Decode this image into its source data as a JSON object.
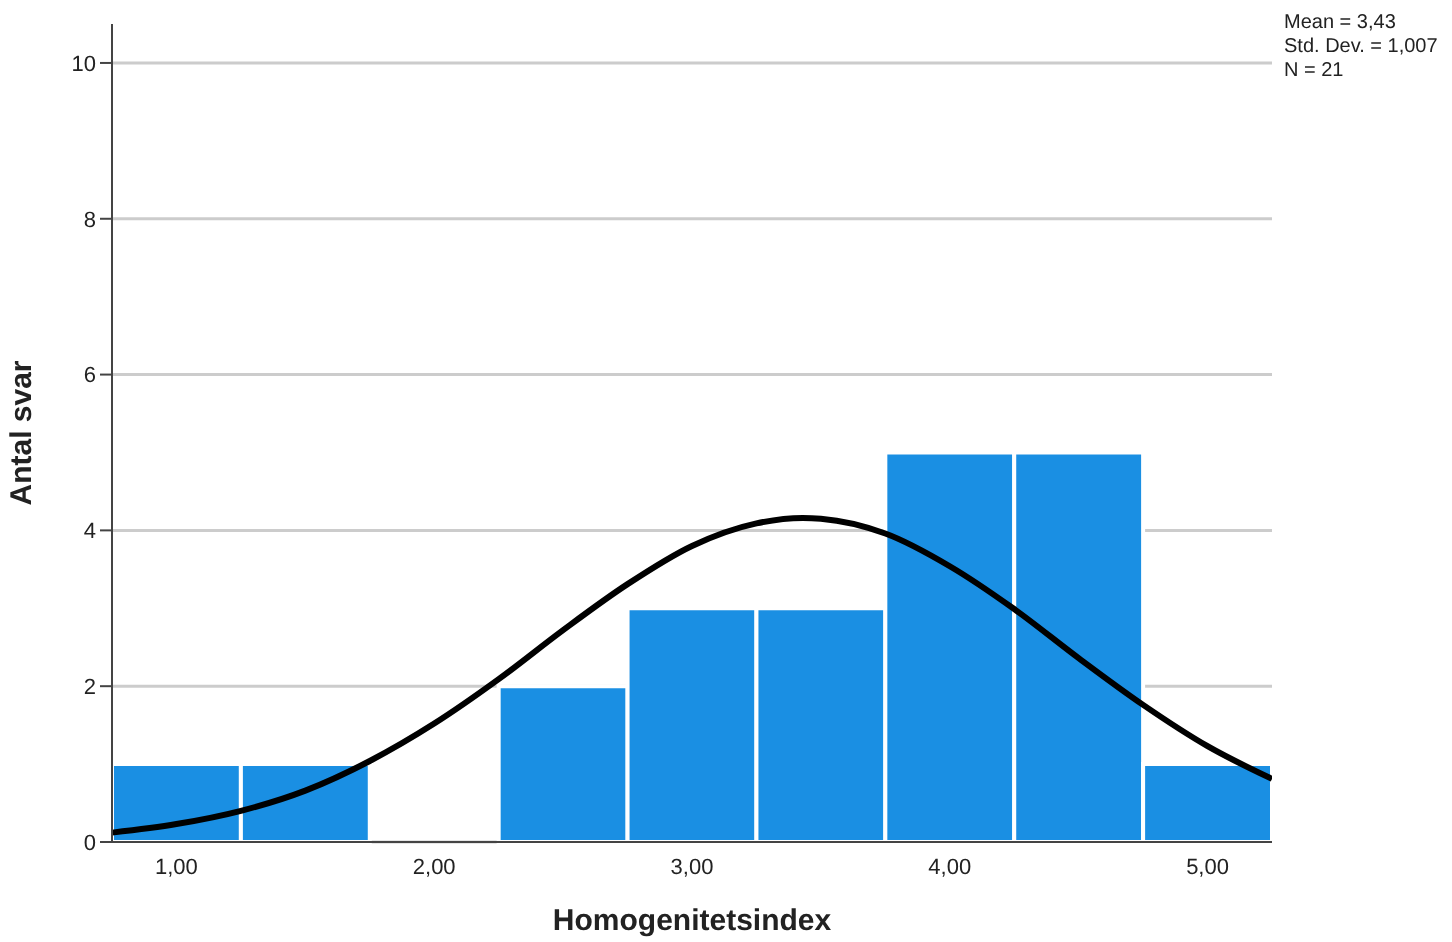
{
  "chart_data": {
    "type": "histogram",
    "xlabel": "Homogenitetsindex",
    "ylabel": "Antal svar",
    "bins": [
      0.75,
      1.25,
      1.75,
      2.25,
      2.75,
      3.25,
      3.75,
      4.25,
      4.75,
      5.25
    ],
    "values": [
      1,
      1,
      0,
      2,
      3,
      3,
      5,
      5,
      1
    ],
    "color": "#1a8fe3",
    "series": [
      {
        "type": "line",
        "color": "#000000",
        "marker": "none",
        "x": [
          0.75,
          1,
          1.25,
          1.5,
          1.75,
          2,
          2.25,
          2.5,
          2.75,
          3,
          3.25,
          3.43,
          3.5,
          3.75,
          4,
          4.25,
          4.5,
          4.75,
          5,
          5.25
        ],
        "values": [
          0.12,
          0.23,
          0.4,
          0.66,
          1.04,
          1.52,
          2.09,
          2.72,
          3.31,
          3.8,
          4.09,
          4.16,
          4.15,
          3.96,
          3.54,
          2.99,
          2.36,
          1.76,
          1.23,
          0.81
        ]
      }
    ],
    "xlim": [
      0.75,
      5.25
    ],
    "xticks": [
      {
        "value": 1,
        "label": "1,00"
      },
      {
        "value": 2,
        "label": "2,00"
      },
      {
        "value": 3,
        "label": "3,00"
      },
      {
        "value": 4,
        "label": "4,00"
      },
      {
        "value": 5,
        "label": "5,00"
      }
    ],
    "ylim": [
      0,
      10.5
    ],
    "yticks": [
      0,
      2,
      4,
      6,
      8,
      10
    ],
    "grid": "y",
    "annotations": [
      "Mean = 3,43",
      "Std. Dev. = 1,007",
      "N = 21"
    ]
  }
}
